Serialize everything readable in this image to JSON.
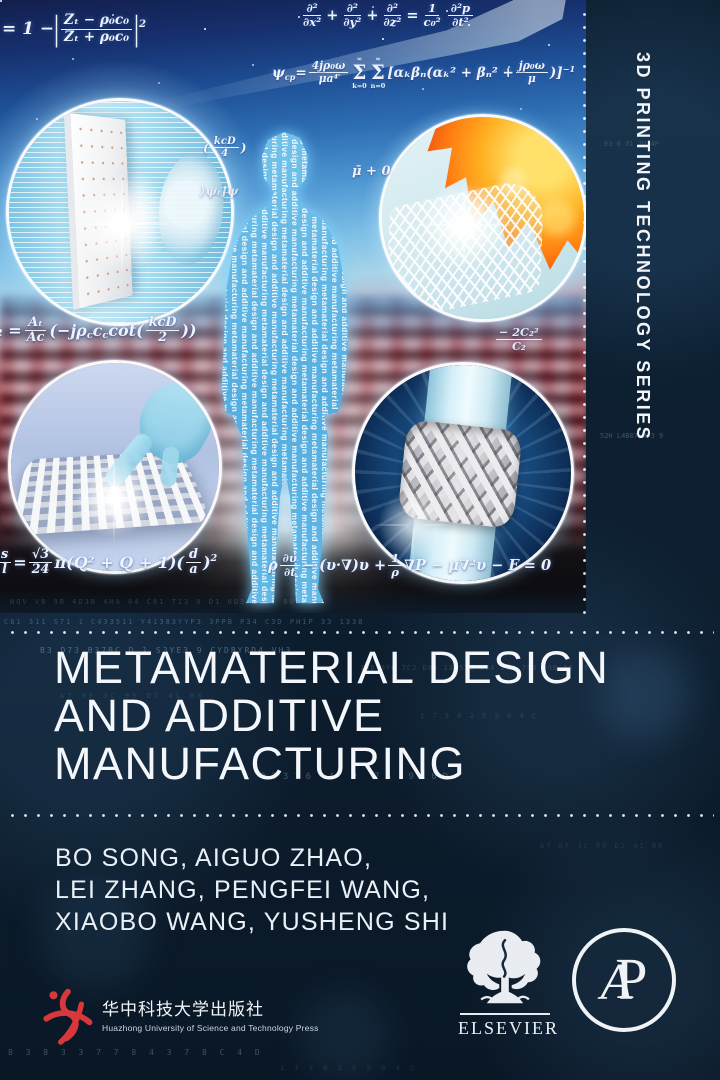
{
  "series_band": {
    "label": "3D PRINTING TECHNOLOGY SERIES"
  },
  "title": {
    "lines": [
      "METAMATERIAL DESIGN",
      "AND ADDITIVE",
      "MANUFACTURING"
    ]
  },
  "authors": {
    "lines": [
      "BO SONG, AIGUO ZHAO,",
      "LEI ZHANG, PENGFEI WANG,",
      "XIAOBO WANG, YUSHENG SHI"
    ]
  },
  "publishers": {
    "huazhong": {
      "chinese": "华中科技大学出版社",
      "english": "Huazhong University of Science and Technology Press",
      "logo_color": "#d6383c"
    },
    "elsevier": {
      "name": "ELSEVIER"
    },
    "academic_press": {
      "letter_a": "A",
      "letter_p": "P"
    }
  },
  "silhouette": {
    "phrase": "metamaterial design and additive manufacturing"
  },
  "equations": {
    "reflection": [
      {
        "t": "= 1 − "
      },
      {
        "t": "|",
        "c": "big"
      },
      {
        "f": [
          "Zₜ − ρ₀c₀",
          "Zₜ + ρ₀c₀"
        ]
      },
      {
        "t": "|",
        "c": "big"
      },
      {
        "sup": "2"
      }
    ],
    "wave": [
      {
        "f": [
          "∂²",
          "∂x²"
        ]
      },
      {
        "t": " + "
      },
      {
        "f": [
          "∂²",
          "∂y²"
        ]
      },
      {
        "t": " + "
      },
      {
        "f": [
          "∂²",
          "∂z²"
        ]
      },
      {
        "t": " = "
      },
      {
        "f": [
          "1",
          "c₀²"
        ]
      },
      {
        "t": " "
      },
      {
        "f": [
          "∂²p",
          "∂t²"
        ]
      }
    ],
    "psi": [
      {
        "t": "ψ"
      },
      {
        "sub": "cp"
      },
      {
        "t": " = "
      },
      {
        "f": [
          "4jρ₀ω",
          "μa⁴"
        ]
      },
      {
        "S": [
          "∞",
          "k=0"
        ]
      },
      {
        "S": [
          "∞",
          "n=0"
        ]
      },
      {
        "t": "[αₖβₙ(αₖ² + βₙ² + "
      },
      {
        "f": [
          "jρ₀ω",
          "μ"
        ]
      },
      {
        "t": ")]"
      },
      {
        "sup": "−1"
      }
    ],
    "kcd": [
      {
        "t": "("
      },
      {
        "f": [
          "kcD",
          "4"
        ]
      },
      {
        "t": ")"
      }
    ],
    "psi_frag": [
      {
        "t": "⟩ψₜ⌋ψ"
      }
    ],
    "mu": [
      {
        "t": "μ̄ + 0"
      }
    ],
    "z2": [
      {
        "t": "Z₂ = "
      },
      {
        "f": [
          "Aₜ",
          "Ac"
        ]
      },
      {
        "t": "("
      },
      {
        "t": "−jρ"
      },
      {
        "sub": "c"
      },
      {
        "t": "c"
      },
      {
        "sub": "c"
      },
      {
        "t": " cot"
      },
      {
        "t": "("
      },
      {
        "f": [
          "kcD",
          "2"
        ]
      },
      {
        "t": "))"
      }
    ],
    "e2": [
      {
        "f": [
          "− 2C₂²",
          "C₂"
        ]
      }
    ],
    "sl": [
      {
        "f": [
          "s",
          "l"
        ]
      },
      {
        "t": " = "
      },
      {
        "f": [
          "√3",
          "24"
        ]
      },
      {
        "t": " π(Q² + Q + 1)"
      },
      {
        "t": "("
      },
      {
        "f": [
          "d",
          "a"
        ]
      },
      {
        "t": ")"
      },
      {
        "sup": "2"
      }
    ],
    "navier": [
      {
        "t": "ρ "
      },
      {
        "f": [
          "∂υ",
          "∂t"
        ]
      },
      {
        "t": " − (υ·∇)υ + "
      },
      {
        "f": [
          "1",
          "ρ"
        ]
      },
      {
        "t": " ∇P − μ∇²υ − F = 0"
      }
    ]
  },
  "insets": {
    "top_left": "acoustic-metamaterial-panel-with-ear",
    "top_right": "thermal-metamaterial-lattice-with-flames",
    "bottom_left": "flexible-mechanical-metamaterial-mesh-with-hand",
    "bottom_right": "lattice-sleeve-on-cylinder"
  },
  "noise": [
    "1B8 3F0 7C2 D94 13 55E 10A 2C7 7F3 D9B 66 0E2",
    "NOV VB 9B 4D3B 4HA 04 C81 T13 0 D1 HD3 31 1 B0 D1",
    "B3 D73 B37BC D 1 S3YE3 9 CYDBYRD4 VH3",
    "C81 311 S71 1 C433511 Y41383YYP3 3PPB P34 C3D PH1P 33 1338",
    "03316 4 9 73 9C0D",
    "8 3 8 3 3 7 7 8 4 3 7   8 C 4 D",
    "A7 0F 3C 99 D2 41 B8",
    "1 7 3 B 2 E 9 0 4 C",
    "E3 8 01 7D 4F",
    "52H L4B07 H73 9"
  ],
  "colors": {
    "page_bg": "#0d1f31",
    "accent_red": "#d6383c",
    "silhouette_cyan": "#5fb6e6",
    "title_white": "#f3f7fb"
  }
}
